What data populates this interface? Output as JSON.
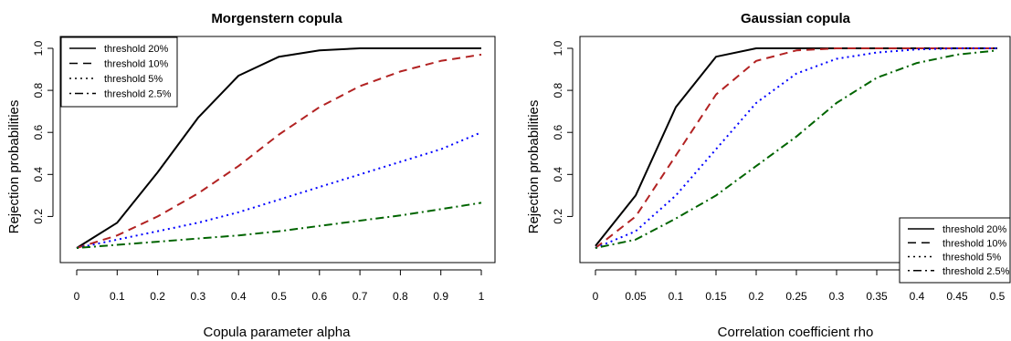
{
  "chart_data": [
    {
      "type": "line",
      "title": "Morgenstern copula",
      "xlabel": "Copula parameter alpha",
      "ylabel": "Rejection probabilities",
      "xlim": [
        0,
        1
      ],
      "ylim": [
        0.05,
        1.0
      ],
      "x": [
        0,
        0.1,
        0.2,
        0.3,
        0.4,
        0.5,
        0.6,
        0.7,
        0.8,
        0.9,
        1
      ],
      "xticklabels": [
        "0",
        "0.1",
        "0.2",
        "0.3",
        "0.4",
        "0.5",
        "0.6",
        "0.7",
        "0.8",
        "0.9",
        "1"
      ],
      "yticks": [
        0.2,
        0.4,
        0.6,
        0.8,
        1.0
      ],
      "yticklabels": [
        "0.2",
        "0.4",
        "0.6",
        "0.8",
        "1.0"
      ],
      "legend_position": "top-left",
      "series": [
        {
          "name": "threshold 20%",
          "color": "#000000",
          "dash": "solid",
          "values": [
            0.05,
            0.17,
            0.41,
            0.67,
            0.87,
            0.96,
            0.99,
            1.0,
            1.0,
            1.0,
            1.0
          ]
        },
        {
          "name": "threshold 10%",
          "color": "#b22222",
          "dash": "dashed",
          "values": [
            0.05,
            0.11,
            0.2,
            0.31,
            0.44,
            0.59,
            0.72,
            0.82,
            0.89,
            0.94,
            0.97
          ]
        },
        {
          "name": "threshold 5%",
          "color": "#0000ff",
          "dash": "dotted",
          "values": [
            0.05,
            0.09,
            0.13,
            0.17,
            0.22,
            0.28,
            0.34,
            0.4,
            0.46,
            0.52,
            0.6
          ]
        },
        {
          "name": "threshold 2.5%",
          "color": "#006400",
          "dash": "dotdash",
          "values": [
            0.05,
            0.065,
            0.08,
            0.095,
            0.11,
            0.13,
            0.155,
            0.18,
            0.205,
            0.235,
            0.265
          ]
        }
      ]
    },
    {
      "type": "line",
      "title": "Gaussian copula",
      "xlabel": "Correlation coefficient rho",
      "ylabel": "Rejection probabilities",
      "xlim": [
        0,
        0.5
      ],
      "ylim": [
        0.05,
        1.0
      ],
      "x": [
        0,
        0.05,
        0.1,
        0.15,
        0.2,
        0.25,
        0.3,
        0.35,
        0.4,
        0.45,
        0.5
      ],
      "xticklabels": [
        "0",
        "0.05",
        "0.1",
        "0.15",
        "0.2",
        "0.25",
        "0.3",
        "0.35",
        "0.4",
        "0.45",
        "0.5"
      ],
      "yticks": [
        0.2,
        0.4,
        0.6,
        0.8,
        1.0
      ],
      "yticklabels": [
        "0.2",
        "0.4",
        "0.6",
        "0.8",
        "1.0"
      ],
      "legend_position": "bottom-right",
      "series": [
        {
          "name": "threshold 20%",
          "color": "#000000",
          "dash": "solid",
          "values": [
            0.06,
            0.3,
            0.72,
            0.96,
            1.0,
            1.0,
            1.0,
            1.0,
            1.0,
            1.0,
            1.0
          ]
        },
        {
          "name": "threshold 10%",
          "color": "#b22222",
          "dash": "dashed",
          "values": [
            0.05,
            0.2,
            0.49,
            0.78,
            0.94,
            0.99,
            1.0,
            1.0,
            1.0,
            1.0,
            1.0
          ]
        },
        {
          "name": "threshold 5%",
          "color": "#0000ff",
          "dash": "dotted",
          "values": [
            0.05,
            0.13,
            0.3,
            0.52,
            0.74,
            0.88,
            0.95,
            0.98,
            0.995,
            1.0,
            1.0
          ]
        },
        {
          "name": "threshold 2.5%",
          "color": "#006400",
          "dash": "dotdash",
          "values": [
            0.05,
            0.09,
            0.19,
            0.3,
            0.44,
            0.58,
            0.74,
            0.86,
            0.93,
            0.97,
            0.99
          ]
        }
      ]
    }
  ]
}
